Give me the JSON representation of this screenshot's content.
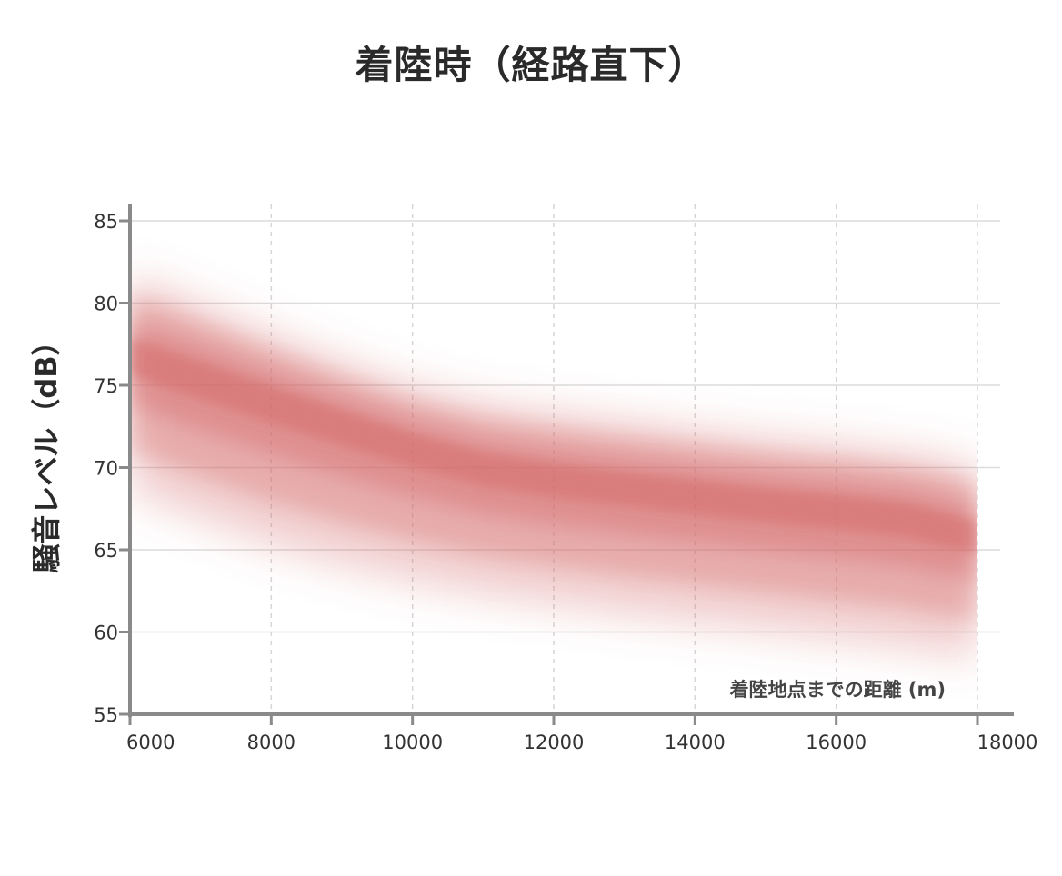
{
  "chart_data": {
    "type": "area",
    "title": "着陸時（経路直下）",
    "xlabel": "着陸地点までの距離 (m)",
    "ylabel": "騒音レベル（dB）",
    "xlim": [
      6000,
      18000
    ],
    "ylim": [
      55,
      85
    ],
    "x_ticks": [
      6000,
      8000,
      10000,
      12000,
      14000,
      16000,
      18000
    ],
    "y_ticks": [
      55,
      60,
      65,
      70,
      75,
      80,
      85
    ],
    "grid": {
      "x": "dashed",
      "y": "solid"
    },
    "band_color": "#d46a6a",
    "series": [
      {
        "x": [
          6000,
          7000,
          8000,
          9000,
          10000,
          11000,
          12000,
          13000,
          14000,
          15000,
          16000,
          17000,
          18000
        ],
        "center": [
          77.0,
          75.6,
          74.2,
          72.8,
          71.4,
          70.2,
          69.5,
          69.0,
          68.5,
          68.0,
          67.6,
          67.1,
          66.0
        ],
        "upper": [
          81.8,
          80.0,
          78.2,
          76.5,
          75.0,
          74.0,
          73.4,
          72.9,
          72.4,
          71.9,
          71.5,
          71.0,
          70.2
        ],
        "lower": [
          68.5,
          66.8,
          65.2,
          64.0,
          63.0,
          62.2,
          61.6,
          61.0,
          60.5,
          60.0,
          59.5,
          59.0,
          58.3
        ]
      }
    ]
  }
}
